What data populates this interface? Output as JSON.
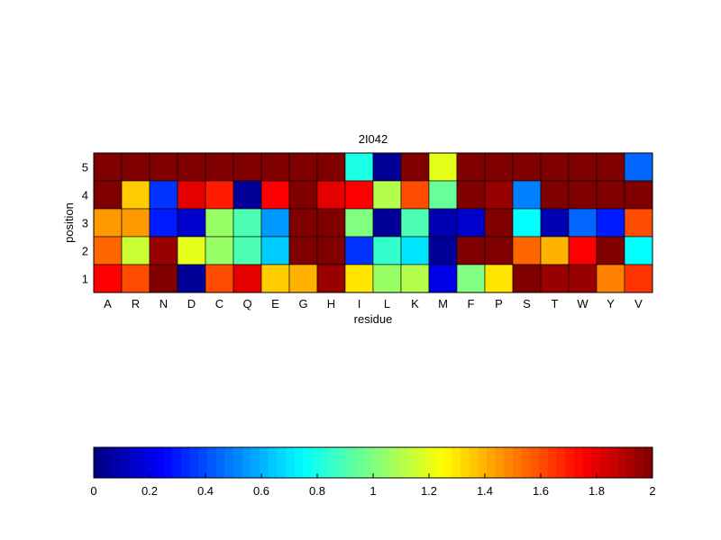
{
  "chart_data": [
    {
      "type": "heatmap",
      "title": "2I042",
      "xlabel": "residue",
      "ylabel": "position",
      "x_categories": [
        "A",
        "R",
        "N",
        "D",
        "C",
        "Q",
        "E",
        "G",
        "H",
        "I",
        "L",
        "K",
        "M",
        "F",
        "P",
        "S",
        "T",
        "W",
        "Y",
        "V"
      ],
      "y_categories": [
        "5",
        "4",
        "3",
        "2",
        "1"
      ],
      "values": [
        [
          2.0,
          2.0,
          2.0,
          2.0,
          2.0,
          2.0,
          2.0,
          2.0,
          2.0,
          0.8,
          0.05,
          2.0,
          1.2,
          2.0,
          2.0,
          2.0,
          2.0,
          2.0,
          2.0,
          0.45
        ],
        [
          2.0,
          1.35,
          0.35,
          1.8,
          1.7,
          0.05,
          1.75,
          2.0,
          1.8,
          1.75,
          1.1,
          1.6,
          0.95,
          2.0,
          1.95,
          0.5,
          2.0,
          2.0,
          2.0,
          2.0
        ],
        [
          1.45,
          1.45,
          0.3,
          0.15,
          1.05,
          0.9,
          0.55,
          2.0,
          2.0,
          1.0,
          0.05,
          0.9,
          0.1,
          0.15,
          2.0,
          0.75,
          0.1,
          0.45,
          0.3,
          1.6
        ],
        [
          1.55,
          1.15,
          1.95,
          1.2,
          1.05,
          0.9,
          0.65,
          2.0,
          2.0,
          0.35,
          0.85,
          0.7,
          0.05,
          2.0,
          2.0,
          1.55,
          1.4,
          1.75,
          2.0,
          0.75
        ],
        [
          1.75,
          1.6,
          2.0,
          0.05,
          1.6,
          1.8,
          1.35,
          1.4,
          1.95,
          1.3,
          1.05,
          1.1,
          0.2,
          1.0,
          1.3,
          2.0,
          1.95,
          1.95,
          1.5,
          1.65
        ]
      ],
      "colormap": "jet",
      "clim": [
        0,
        2
      ],
      "colorbar": {
        "orientation": "horizontal",
        "ticks": [
          "0",
          "0.2",
          "0.4",
          "0.6",
          "0.8",
          "1",
          "1.2",
          "1.4",
          "1.6",
          "1.8",
          "2"
        ]
      }
    }
  ]
}
